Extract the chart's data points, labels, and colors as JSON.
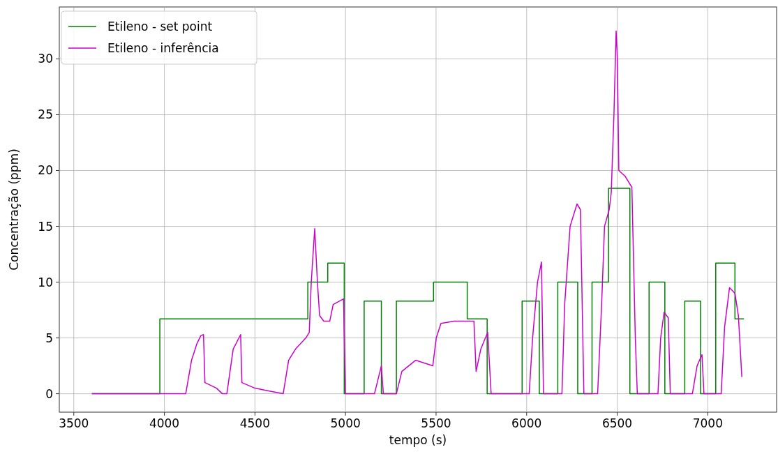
{
  "chart_data": {
    "type": "line",
    "xlabel": "tempo (s)",
    "ylabel": "Concentração (ppm)",
    "xlim": [
      3420,
      7380
    ],
    "ylim": [
      -1.65,
      34.65
    ],
    "xticks": [
      3500,
      4000,
      4500,
      5000,
      5500,
      6000,
      6500,
      7000
    ],
    "yticks": [
      0,
      5,
      10,
      15,
      20,
      25,
      30
    ],
    "grid": true,
    "legend": "top left",
    "series": [
      {
        "name": "Etileno - set point",
        "type": "step",
        "color": "#008000",
        "x": [
          3600,
          3975,
          4792,
          4902,
          4993,
          5103,
          5198,
          5281,
          5486,
          5672,
          5782,
          5975,
          6070,
          6172,
          6282,
          6361,
          6452,
          6570,
          6676,
          6763,
          6873,
          6960,
          7044,
          7150,
          7200
        ],
        "values": [
          0,
          6.7,
          10,
          11.7,
          0,
          8.3,
          0,
          8.3,
          10,
          6.7,
          0,
          8.3,
          0,
          10,
          0,
          10,
          18.4,
          0,
          10,
          0,
          8.3,
          0,
          11.7,
          6.7,
          6.7
        ]
      },
      {
        "name": "Etileno - inferência",
        "color": "#cc00cc",
        "x": [
          3600,
          4118,
          4150,
          4180,
          4201,
          4216,
          4224,
          4288,
          4320,
          4345,
          4380,
          4421,
          4428,
          4500,
          4560,
          4656,
          4686,
          4724,
          4781,
          4800,
          4811,
          4830,
          4845,
          4857,
          4880,
          4913,
          4932,
          4989,
          5000,
          5160,
          5198,
          5209,
          5281,
          5311,
          5387,
          5482,
          5501,
          5527,
          5600,
          5709,
          5721,
          5747,
          5785,
          5804,
          6014,
          6033,
          6060,
          6082,
          6093,
          6195,
          6210,
          6240,
          6278,
          6297,
          6316,
          6392,
          6414,
          6430,
          6456,
          6467,
          6482,
          6494,
          6501,
          6509,
          6543,
          6581,
          6600,
          6611,
          6725,
          6740,
          6759,
          6782,
          6793,
          6915,
          6941,
          6968,
          6979,
          7074,
          7093,
          7120,
          7150,
          7169,
          7188
        ],
        "values": [
          0,
          0,
          3,
          4.5,
          5.2,
          5.3,
          1,
          0.5,
          0,
          0,
          4,
          5.3,
          1,
          0.5,
          0.3,
          0,
          3,
          4,
          5,
          5.5,
          10,
          14.8,
          10,
          7,
          6.5,
          6.5,
          8,
          8.5,
          0,
          0,
          2.5,
          0,
          0,
          2,
          3,
          2.5,
          5,
          6.3,
          6.5,
          6.5,
          2,
          4,
          5.5,
          0,
          0,
          5,
          10,
          11.8,
          0,
          0,
          8,
          15,
          17,
          16.5,
          0,
          0,
          8,
          15,
          16.5,
          18,
          25,
          32.5,
          30,
          20,
          19.5,
          18.5,
          5,
          0,
          0,
          5,
          7.3,
          6.8,
          0,
          0,
          2.5,
          3.5,
          0,
          0,
          6,
          9.5,
          9,
          7,
          1.5
        ]
      }
    ]
  }
}
